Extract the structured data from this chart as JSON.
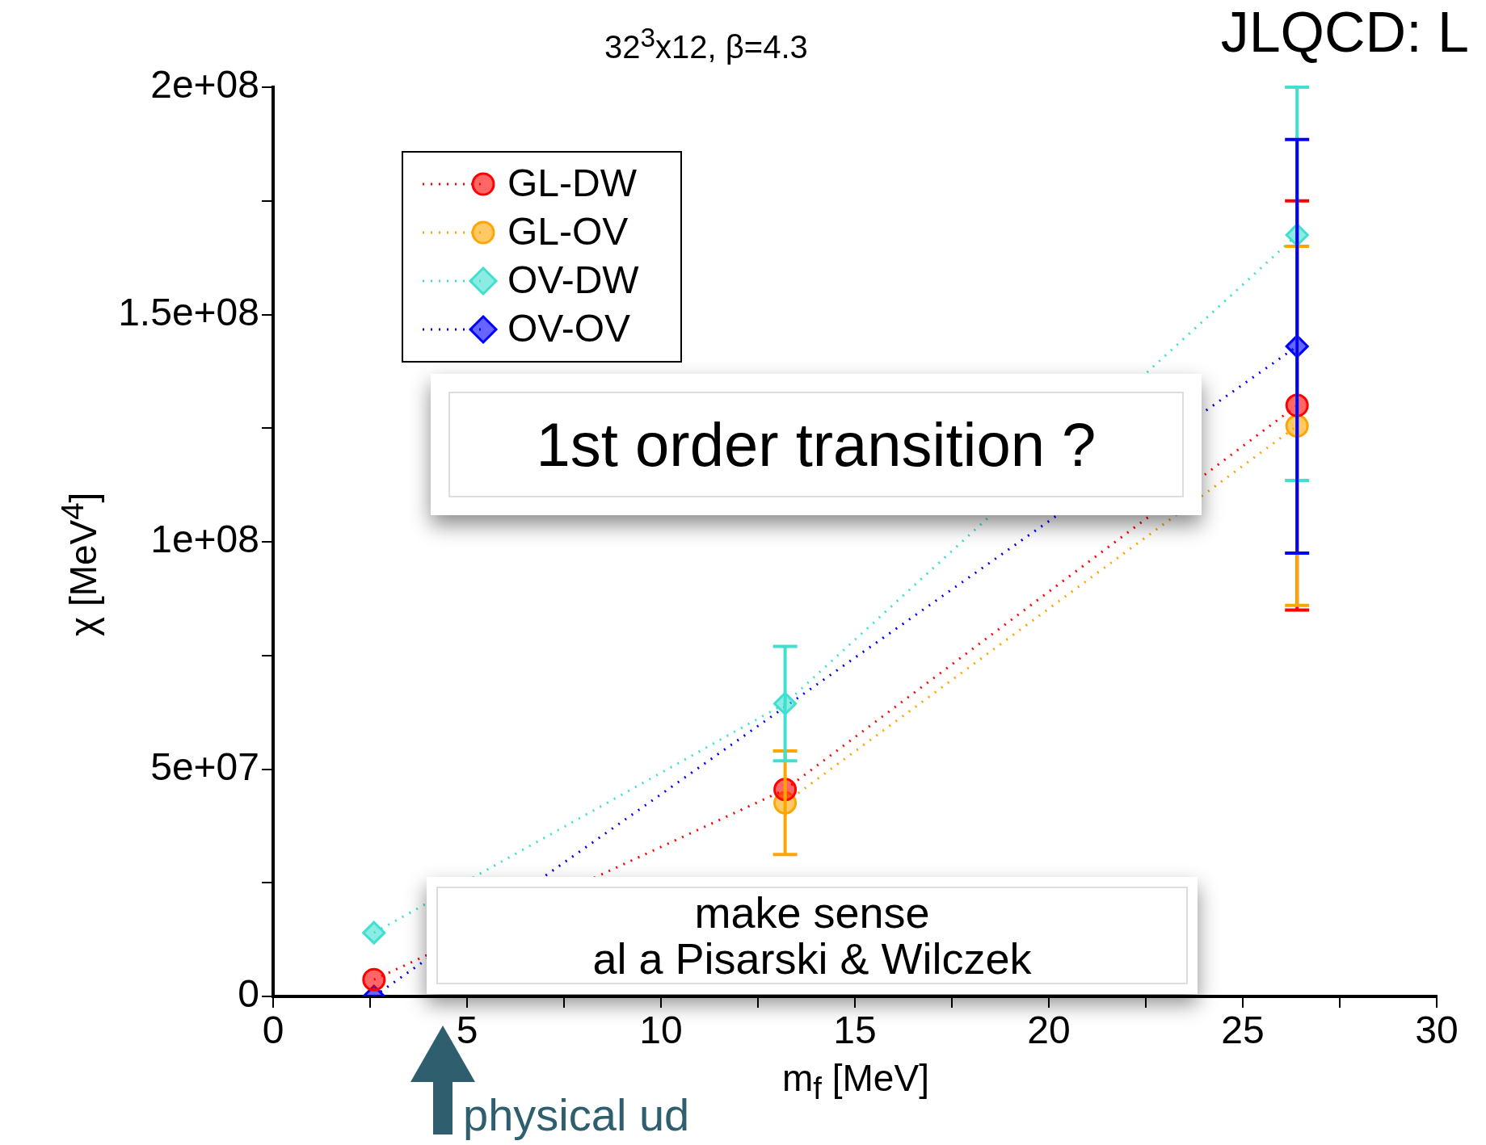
{
  "chart_data": {
    "type": "line",
    "title": "32$^{3}$x12, β=4.3",
    "xlabel": "m$_{f}$ [MeV]",
    "ylabel": "χ [MeV$^{4}$]",
    "x": [
      2.6,
      13.2,
      26.4
    ],
    "series": [
      {
        "name": "GL-DW",
        "color": "#ff0000",
        "marker": "circle",
        "values": [
          3700000,
          45500000,
          130000000
        ],
        "errors": [
          null,
          null,
          [
            85000000,
            175000000
          ]
        ]
      },
      {
        "name": "GL-OV",
        "color": "#ffa500",
        "marker": "circle",
        "values": [
          null,
          42600000,
          125500000
        ],
        "errors": [
          null,
          11400000,
          [
            86000000,
            165000000
          ]
        ]
      },
      {
        "name": "OV-DW",
        "color": "#40e0d0",
        "marker": "diamond",
        "values": [
          14000000,
          64400000,
          167500000
        ],
        "errors": [
          null,
          12600000,
          [
            113500000,
            200000000
          ]
        ]
      },
      {
        "name": "OV-OV",
        "color": "#0000ff",
        "marker": "diamond",
        "values": [
          0,
          null,
          143000000
        ],
        "errors": [
          null,
          null,
          [
            97500000,
            188500000
          ]
        ]
      }
    ],
    "xlim": [
      0,
      30
    ],
    "xticks": [
      0,
      {
        "value": 2.5,
        "label": null
      },
      5,
      {
        "value": 7.5,
        "label": null
      },
      10,
      {
        "value": 12.5,
        "label": null
      },
      15,
      {
        "value": 17.5,
        "label": null
      },
      20,
      {
        "value": 22.5,
        "label": null
      },
      25,
      {
        "value": 27.5,
        "label": null
      },
      30
    ],
    "ylim": [
      0,
      200000000
    ],
    "yticks": [
      0,
      {
        "value": 25000000,
        "label": null
      },
      {
        "value": 50000000,
        "label": "5e+07"
      },
      {
        "value": 75000000,
        "label": null
      },
      {
        "value": 100000000,
        "label": "1e+08"
      },
      {
        "value": 125000000,
        "label": null
      },
      {
        "value": 150000000,
        "label": "1.5e+08"
      },
      {
        "value": 175000000,
        "label": null
      },
      {
        "value": 200000000,
        "label": "2e+08"
      }
    ],
    "grid": false,
    "legend": "top left",
    "line_style": "dotted",
    "annotations": [
      "JLQCD: L",
      "1st order transition ?",
      "make sense\nal a Pisarski & Wilczek",
      "physical ud"
    ]
  }
}
